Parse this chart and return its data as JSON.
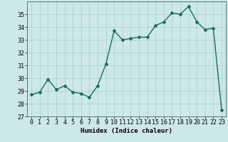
{
  "x": [
    0,
    1,
    2,
    3,
    4,
    5,
    6,
    7,
    8,
    9,
    10,
    11,
    12,
    13,
    14,
    15,
    16,
    17,
    18,
    19,
    20,
    21,
    22,
    23
  ],
  "y": [
    28.7,
    28.9,
    29.9,
    29.1,
    29.4,
    28.9,
    28.8,
    28.5,
    29.4,
    31.1,
    33.7,
    33.0,
    33.1,
    33.2,
    33.2,
    34.1,
    34.4,
    35.1,
    35.0,
    35.6,
    34.4,
    33.8,
    33.9,
    27.5
  ],
  "xlabel": "Humidex (Indice chaleur)",
  "ylim": [
    27,
    36
  ],
  "yticks": [
    27,
    28,
    29,
    30,
    31,
    32,
    33,
    34,
    35
  ],
  "line_color": "#1a6b5a",
  "marker": "D",
  "marker_size": 2.0,
  "line_width": 1.0,
  "bg_color": "#cde8e8",
  "grid_color": "#aacccc",
  "xlabel_fontsize": 6.5,
  "tick_fontsize": 6
}
